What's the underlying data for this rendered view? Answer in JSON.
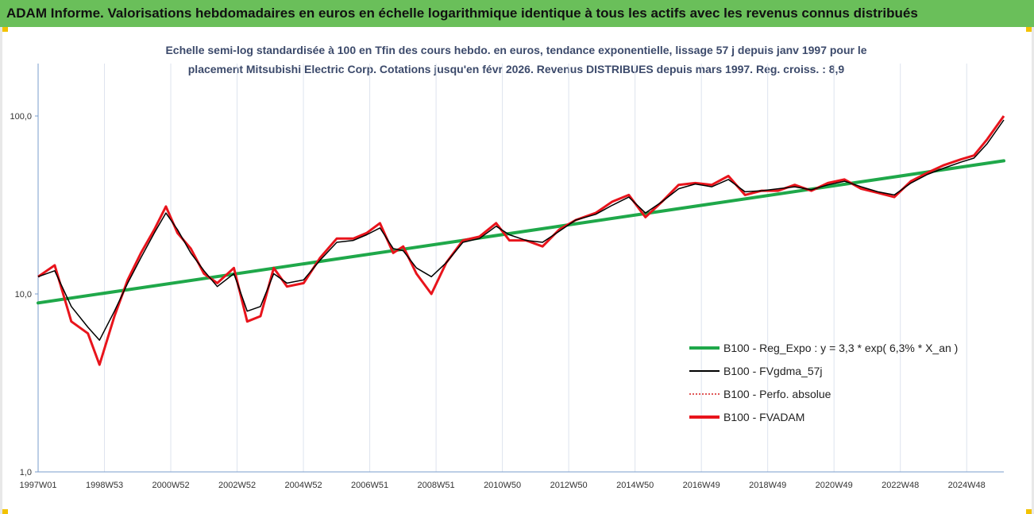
{
  "banner": {
    "title": "ADAM Informe. Valorisations hebdomadaires en euros en échelle logarithmique identique à tous les actifs avec les revenus connus distribués"
  },
  "subtitle": {
    "line1": "Echelle semi-log standardisée à 100 en Tfin des cours hebdo. en euros, tendance exponentielle, lissage 57 j depuis janv 1997 pour le",
    "line2": "placement Mitsubishi Electric Corp. Cotations jusqu'en févr 2026. Revenus DISTRIBUES depuis mars 1997.  Reg. croiss. : 8,9"
  },
  "colors": {
    "banner": "#6abf5a",
    "regression": "#1fa84a",
    "smoothed": "#000000",
    "perf_absolue": "#d62020",
    "fvadam": "#e8141c"
  },
  "chart_data": {
    "type": "line",
    "y_scale": "log",
    "ylim": [
      1,
      100
    ],
    "y_ticks": [
      "1,0",
      "10,0",
      "100,0"
    ],
    "x_range": [
      1997.0,
      2026.1
    ],
    "x_tick_labels": [
      "1997W01",
      "1998W53",
      "2000W52",
      "2002W52",
      "2004W52",
      "2006W51",
      "2008W51",
      "2010W50",
      "2012W50",
      "2014W50",
      "2016W49",
      "2018W49",
      "2020W49",
      "2022W48",
      "2024W48"
    ],
    "grid": "vertical",
    "legend_position": "bottom-right",
    "series": [
      {
        "name": "B100 - Reg_Expo : y = 3,3 * exp( 6,3% *  X_an )",
        "key": "reg",
        "x": [
          1997.0,
          2026.1
        ],
        "y": [
          8.9,
          56
        ]
      },
      {
        "name": "B100 - FVgdma_57j",
        "key": "smooth",
        "x": [
          1997.0,
          1997.5,
          1998.0,
          1998.5,
          1998.85,
          1999.3,
          1999.7,
          2000.1,
          2000.5,
          2000.85,
          2001.2,
          2001.6,
          2002.0,
          2002.4,
          2002.9,
          2003.3,
          2003.7,
          2004.1,
          2004.5,
          2005.0,
          2005.5,
          2006.0,
          2006.5,
          2006.9,
          2007.3,
          2007.7,
          2008.0,
          2008.4,
          2008.85,
          2009.3,
          2009.8,
          2010.3,
          2010.8,
          2011.2,
          2011.7,
          2012.2,
          2012.7,
          2013.2,
          2013.8,
          2014.3,
          2014.8,
          2015.3,
          2015.8,
          2016.3,
          2016.8,
          2017.3,
          2017.8,
          2018.3,
          2018.8,
          2019.3,
          2019.8,
          2020.3,
          2020.8,
          2021.3,
          2021.8,
          2022.3,
          2022.8,
          2023.3,
          2023.8,
          2024.3,
          2024.8,
          2025.2,
          2025.6,
          2026.1
        ],
        "y": [
          12.5,
          13.5,
          8.5,
          6.5,
          5.5,
          8.0,
          11.5,
          16.0,
          22.0,
          28.5,
          23.0,
          17.0,
          13.5,
          11.0,
          13.0,
          8.0,
          8.5,
          13.0,
          11.5,
          12.0,
          15.5,
          19.5,
          20.0,
          21.5,
          23.5,
          18.0,
          17.5,
          14.0,
          12.5,
          15.0,
          19.5,
          20.5,
          24.0,
          21.5,
          20.0,
          19.5,
          22.5,
          26.0,
          28.0,
          31.5,
          35.0,
          28.5,
          33.0,
          39.0,
          41.5,
          40.0,
          44.0,
          37.5,
          38.0,
          39.0,
          40.0,
          38.5,
          41.0,
          43.0,
          40.0,
          37.5,
          36.0,
          42.0,
          47.0,
          51.0,
          55.0,
          58.0,
          70.0,
          95.0
        ]
      },
      {
        "name": "B100 - Perfo. absolue",
        "key": "perf",
        "x": [
          1997.0,
          1998.85,
          2000.85,
          2002.9,
          2005.0,
          2006.9,
          2008.85,
          2010.8,
          2012.7,
          2014.8,
          2016.8,
          2018.8,
          2020.8,
          2022.8,
          2024.8,
          2026.1
        ],
        "y": [
          12.5,
          4.0,
          31.0,
          7.0,
          11.5,
          24.0,
          11.0,
          23.0,
          18.5,
          34.0,
          42.0,
          35.0,
          42.0,
          35.0,
          53.0,
          100.0
        ]
      },
      {
        "name": "B100 - FVADAM",
        "key": "fvadam",
        "x": [
          1997.0,
          1997.5,
          1998.0,
          1998.5,
          1998.85,
          1999.3,
          1999.7,
          2000.1,
          2000.5,
          2000.85,
          2001.2,
          2001.6,
          2002.0,
          2002.4,
          2002.9,
          2003.3,
          2003.7,
          2004.1,
          2004.5,
          2005.0,
          2005.5,
          2006.0,
          2006.5,
          2006.9,
          2007.3,
          2007.7,
          2008.0,
          2008.4,
          2008.85,
          2009.3,
          2009.8,
          2010.3,
          2010.8,
          2011.2,
          2011.7,
          2012.2,
          2012.7,
          2013.2,
          2013.8,
          2014.3,
          2014.8,
          2015.3,
          2015.8,
          2016.3,
          2016.8,
          2017.3,
          2017.8,
          2018.3,
          2018.8,
          2019.3,
          2019.8,
          2020.3,
          2020.8,
          2021.3,
          2021.8,
          2022.3,
          2022.8,
          2023.3,
          2023.8,
          2024.3,
          2024.8,
          2025.2,
          2025.6,
          2026.1
        ],
        "y": [
          12.5,
          14.5,
          7.0,
          6.0,
          4.0,
          7.5,
          12.0,
          17.0,
          23.0,
          31.0,
          22.0,
          18.0,
          13.0,
          11.5,
          14.0,
          7.0,
          7.5,
          14.0,
          11.0,
          11.5,
          16.0,
          20.5,
          20.5,
          22.0,
          25.0,
          17.0,
          18.5,
          13.0,
          10.0,
          15.0,
          20.0,
          21.0,
          25.0,
          20.0,
          20.0,
          18.5,
          23.0,
          26.0,
          28.5,
          33.0,
          36.0,
          27.0,
          33.0,
          41.0,
          42.0,
          41.0,
          46.0,
          36.0,
          38.0,
          38.0,
          41.0,
          38.0,
          42.0,
          44.0,
          39.0,
          37.0,
          35.0,
          43.0,
          48.0,
          53.0,
          57.0,
          60.0,
          74.0,
          100.0
        ]
      }
    ]
  }
}
